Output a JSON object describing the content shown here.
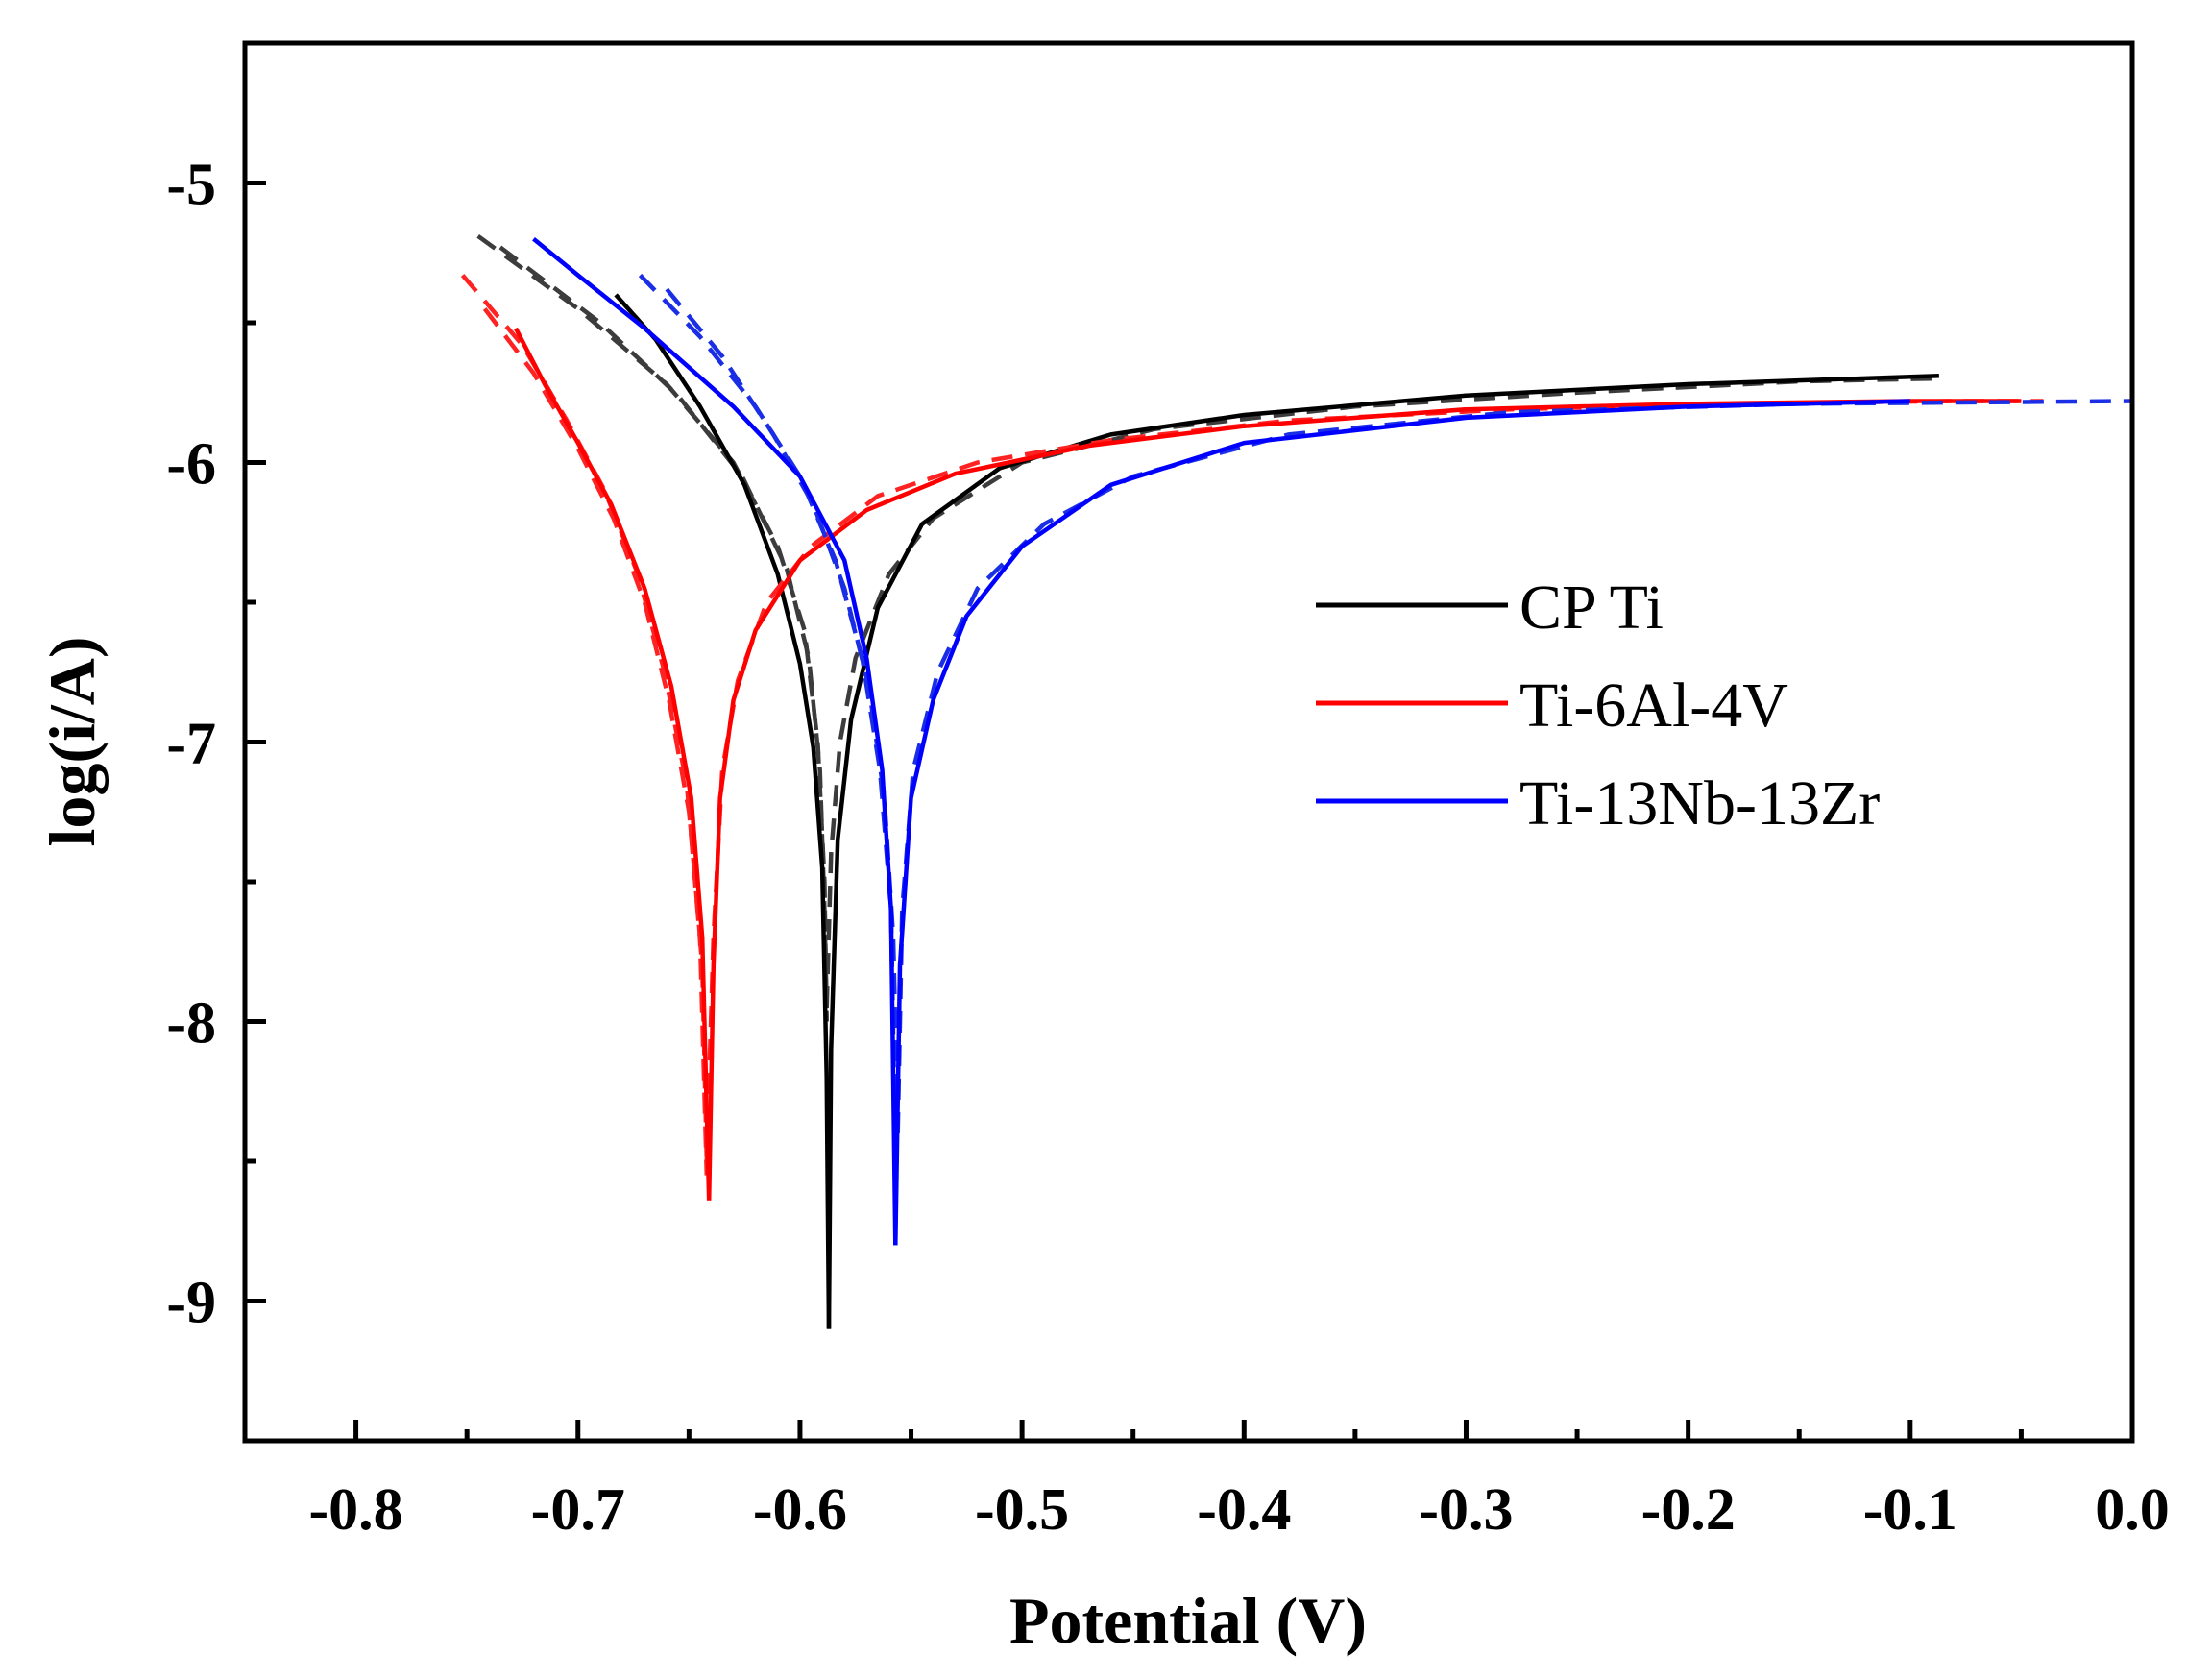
{
  "chart_data": {
    "type": "line",
    "title": "",
    "xlabel": "Potential (V)",
    "ylabel": "log(i/A)",
    "xlim": [
      -0.85,
      0.0
    ],
    "ylim": [
      -9.5,
      -4.5
    ],
    "grid": false,
    "legend_position": "center-right",
    "x_ticks": [
      -0.8,
      -0.7,
      -0.6,
      -0.5,
      -0.4,
      -0.3,
      -0.2,
      -0.1,
      0.0
    ],
    "x_tick_labels": [
      "-0.8",
      "-0.7",
      "-0.6",
      "-0.5",
      "-0.4",
      "-0.3",
      "-0.2",
      "-0.1",
      "0.0"
    ],
    "y_ticks": [
      -9,
      -8,
      -7,
      -6,
      -5
    ],
    "y_tick_labels": [
      "-9",
      "-8",
      "-7",
      "-6",
      "-5"
    ],
    "series": [
      {
        "name": "CP Ti",
        "color": "#000000",
        "dashed_color": "#3c3c3c",
        "ecorr": -0.587,
        "cathodic": [
          [
            -0.683,
            -5.4
          ],
          [
            -0.665,
            -5.56
          ],
          [
            -0.645,
            -5.8
          ],
          [
            -0.625,
            -6.08
          ],
          [
            -0.61,
            -6.4
          ],
          [
            -0.6,
            -6.72
          ],
          [
            -0.594,
            -7.02
          ],
          [
            -0.59,
            -7.45
          ],
          [
            -0.588,
            -8.2
          ],
          [
            -0.587,
            -9.1
          ]
        ],
        "anodic": [
          [
            -0.587,
            -9.1
          ],
          [
            -0.586,
            -8.1
          ],
          [
            -0.583,
            -7.35
          ],
          [
            -0.577,
            -6.92
          ],
          [
            -0.565,
            -6.52
          ],
          [
            -0.545,
            -6.22
          ],
          [
            -0.51,
            -6.02
          ],
          [
            -0.46,
            -5.9
          ],
          [
            -0.4,
            -5.83
          ],
          [
            -0.3,
            -5.76
          ],
          [
            -0.2,
            -5.72
          ],
          [
            -0.087,
            -5.69
          ]
        ],
        "fits": [
          [
            [
              -0.745,
              -5.19
            ],
            [
              -0.7,
              -5.45
            ],
            [
              -0.66,
              -5.72
            ],
            [
              -0.63,
              -6.0
            ],
            [
              -0.61,
              -6.3
            ],
            [
              -0.598,
              -6.6
            ],
            [
              -0.592,
              -7.0
            ],
            [
              -0.589,
              -7.5
            ],
            [
              -0.588,
              -8.0
            ]
          ],
          [
            [
              -0.735,
              -5.23
            ],
            [
              -0.69,
              -5.5
            ],
            [
              -0.655,
              -5.76
            ],
            [
              -0.626,
              -6.05
            ],
            [
              -0.606,
              -6.38
            ],
            [
              -0.596,
              -6.7
            ],
            [
              -0.591,
              -7.1
            ],
            [
              -0.589,
              -7.6
            ],
            [
              -0.588,
              -7.95
            ]
          ],
          [
            [
              -0.588,
              -7.95
            ],
            [
              -0.586,
              -7.4
            ],
            [
              -0.582,
              -7.0
            ],
            [
              -0.575,
              -6.7
            ],
            [
              -0.56,
              -6.4
            ],
            [
              -0.54,
              -6.2
            ],
            [
              -0.5,
              -6.0
            ],
            [
              -0.44,
              -5.88
            ],
            [
              -0.35,
              -5.8
            ],
            [
              -0.25,
              -5.75
            ],
            [
              -0.15,
              -5.71
            ],
            [
              -0.09,
              -5.7
            ]
          ]
        ]
      },
      {
        "name": "Ti-6Al-4V",
        "color": "#ff0000",
        "dashed_color": "#ff2222",
        "ecorr": -0.641,
        "cathodic": [
          [
            -0.728,
            -5.52
          ],
          [
            -0.715,
            -5.72
          ],
          [
            -0.7,
            -5.93
          ],
          [
            -0.685,
            -6.15
          ],
          [
            -0.67,
            -6.45
          ],
          [
            -0.658,
            -6.8
          ],
          [
            -0.649,
            -7.2
          ],
          [
            -0.644,
            -7.7
          ],
          [
            -0.641,
            -8.64
          ]
        ],
        "anodic": [
          [
            -0.641,
            -8.64
          ],
          [
            -0.639,
            -7.8
          ],
          [
            -0.636,
            -7.2
          ],
          [
            -0.63,
            -6.85
          ],
          [
            -0.62,
            -6.6
          ],
          [
            -0.6,
            -6.35
          ],
          [
            -0.57,
            -6.17
          ],
          [
            -0.53,
            -6.04
          ],
          [
            -0.47,
            -5.94
          ],
          [
            -0.4,
            -5.87
          ],
          [
            -0.3,
            -5.81
          ],
          [
            -0.2,
            -5.79
          ],
          [
            -0.1,
            -5.78
          ],
          [
            -0.05,
            -5.78
          ]
        ],
        "fits": [
          [
            [
              -0.752,
              -5.33
            ],
            [
              -0.725,
              -5.58
            ],
            [
              -0.705,
              -5.85
            ],
            [
              -0.688,
              -6.1
            ],
            [
              -0.673,
              -6.4
            ],
            [
              -0.661,
              -6.75
            ],
            [
              -0.651,
              -7.15
            ],
            [
              -0.645,
              -7.7
            ],
            [
              -0.642,
              -8.55
            ]
          ],
          [
            [
              -0.742,
              -5.45
            ],
            [
              -0.72,
              -5.68
            ],
            [
              -0.7,
              -5.95
            ],
            [
              -0.684,
              -6.2
            ],
            [
              -0.67,
              -6.5
            ],
            [
              -0.659,
              -6.85
            ],
            [
              -0.65,
              -7.25
            ],
            [
              -0.644,
              -7.8
            ],
            [
              -0.642,
              -8.5
            ]
          ],
          [
            [
              -0.642,
              -8.5
            ],
            [
              -0.639,
              -7.7
            ],
            [
              -0.635,
              -7.1
            ],
            [
              -0.628,
              -6.78
            ],
            [
              -0.615,
              -6.5
            ],
            [
              -0.595,
              -6.3
            ],
            [
              -0.565,
              -6.12
            ],
            [
              -0.52,
              -6.0
            ],
            [
              -0.46,
              -5.92
            ],
            [
              -0.38,
              -5.85
            ],
            [
              -0.28,
              -5.81
            ],
            [
              -0.18,
              -5.79
            ],
            [
              -0.08,
              -5.78
            ],
            [
              -0.04,
              -5.78
            ]
          ]
        ]
      },
      {
        "name": "Ti-13Nb-13Zr",
        "color": "#0000ff",
        "dashed_color": "#1a2ee6",
        "ecorr": -0.557,
        "cathodic": [
          [
            -0.72,
            -5.2
          ],
          [
            -0.7,
            -5.33
          ],
          [
            -0.67,
            -5.52
          ],
          [
            -0.63,
            -5.8
          ],
          [
            -0.6,
            -6.05
          ],
          [
            -0.58,
            -6.35
          ],
          [
            -0.57,
            -6.7
          ],
          [
            -0.563,
            -7.1
          ],
          [
            -0.559,
            -7.6
          ],
          [
            -0.557,
            -8.8
          ]
        ],
        "anodic": [
          [
            -0.557,
            -8.8
          ],
          [
            -0.555,
            -7.8
          ],
          [
            -0.55,
            -7.2
          ],
          [
            -0.54,
            -6.85
          ],
          [
            -0.525,
            -6.55
          ],
          [
            -0.5,
            -6.3
          ],
          [
            -0.46,
            -6.08
          ],
          [
            -0.4,
            -5.93
          ],
          [
            -0.3,
            -5.84
          ],
          [
            -0.2,
            -5.8
          ],
          [
            -0.1,
            -5.78
          ]
        ],
        "fits": [
          [
            [
              -0.672,
              -5.33
            ],
            [
              -0.645,
              -5.55
            ],
            [
              -0.62,
              -5.8
            ],
            [
              -0.6,
              -6.05
            ],
            [
              -0.584,
              -6.35
            ],
            [
              -0.572,
              -6.7
            ],
            [
              -0.564,
              -7.1
            ],
            [
              -0.559,
              -7.6
            ],
            [
              -0.557,
              -8.5
            ]
          ],
          [
            [
              -0.66,
              -5.38
            ],
            [
              -0.635,
              -5.62
            ],
            [
              -0.612,
              -5.9
            ],
            [
              -0.594,
              -6.15
            ],
            [
              -0.58,
              -6.45
            ],
            [
              -0.569,
              -6.8
            ],
            [
              -0.562,
              -7.2
            ],
            [
              -0.558,
              -7.7
            ],
            [
              -0.556,
              -8.4
            ]
          ],
          [
            [
              -0.556,
              -8.4
            ],
            [
              -0.554,
              -7.6
            ],
            [
              -0.549,
              -7.1
            ],
            [
              -0.538,
              -6.75
            ],
            [
              -0.52,
              -6.45
            ],
            [
              -0.49,
              -6.22
            ],
            [
              -0.45,
              -6.05
            ],
            [
              -0.38,
              -5.9
            ],
            [
              -0.28,
              -5.82
            ],
            [
              -0.15,
              -5.79
            ],
            [
              0.0,
              -5.78
            ]
          ]
        ]
      }
    ]
  }
}
